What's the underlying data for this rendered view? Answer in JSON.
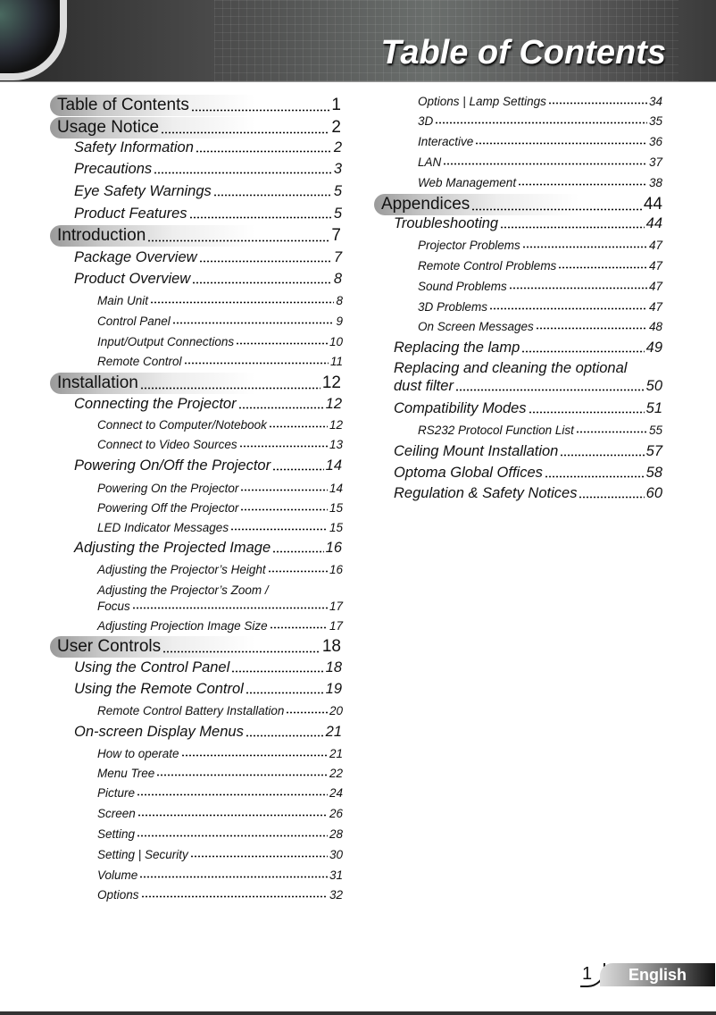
{
  "header": {
    "title": "Table of Contents"
  },
  "footer": {
    "page": "1",
    "language": "English"
  },
  "toc": {
    "left": [
      {
        "level": 1,
        "label": "Table of Contents",
        "page": "1"
      },
      {
        "level": 1,
        "label": "Usage Notice",
        "page": "2"
      },
      {
        "level": 2,
        "label": "Safety Information",
        "page": "2"
      },
      {
        "level": 2,
        "label": "Precautions",
        "page": "3"
      },
      {
        "level": 2,
        "label": "Eye Safety Warnings",
        "page": "5"
      },
      {
        "level": 2,
        "label": "Product Features",
        "page": "5"
      },
      {
        "level": 1,
        "label": "Introduction",
        "page": "7"
      },
      {
        "level": 2,
        "label": "Package Overview",
        "page": "7"
      },
      {
        "level": 2,
        "label": "Product Overview",
        "page": "8"
      },
      {
        "level": 3,
        "label": "Main Unit",
        "page": "8"
      },
      {
        "level": 3,
        "label": "Control Panel",
        "page": "9"
      },
      {
        "level": 3,
        "label": "Input/Output Connections",
        "page": "10"
      },
      {
        "level": 3,
        "label": "Remote Control",
        "page": "11"
      },
      {
        "level": 1,
        "label": "Installation",
        "page": "12"
      },
      {
        "level": 2,
        "label": "Connecting the Projector",
        "page": "12"
      },
      {
        "level": 3,
        "label": "Connect to Computer/Notebook",
        "page": "12"
      },
      {
        "level": 3,
        "label": "Connect to Video Sources",
        "page": "13"
      },
      {
        "level": 2,
        "label": "Powering On/Off the Projector",
        "page": "14"
      },
      {
        "level": 3,
        "label": "Powering On the Projector",
        "page": "14"
      },
      {
        "level": 3,
        "label": "Powering Off the Projector",
        "page": "15"
      },
      {
        "level": 3,
        "label": "LED Indicator Messages",
        "page": "15"
      },
      {
        "level": 2,
        "label": "Adjusting the Projected Image",
        "page": "16"
      },
      {
        "level": 3,
        "label": "Adjusting the Projector’s Height",
        "page": "16"
      },
      {
        "level": 3,
        "line1": "Adjusting the Projector’s Zoom /",
        "label": "Focus",
        "page": "17"
      },
      {
        "level": 3,
        "label": "Adjusting Projection Image Size",
        "page": "17"
      },
      {
        "level": 1,
        "label": "User Controls",
        "page": "18"
      },
      {
        "level": 2,
        "label": "Using the Control Panel",
        "page": "18"
      },
      {
        "level": 2,
        "label": "Using the Remote Control",
        "page": "19"
      },
      {
        "level": 3,
        "label": "Remote Control Battery Installation",
        "page": "20"
      },
      {
        "level": 2,
        "label": "On-screen Display Menus",
        "page": "21"
      },
      {
        "level": 3,
        "label": "How to operate ",
        "page": "21"
      },
      {
        "level": 3,
        "label": "Menu Tree",
        "page": "22"
      },
      {
        "level": 3,
        "label": "Picture",
        "page": "24"
      },
      {
        "level": 3,
        "label": "Screen",
        "page": "26"
      },
      {
        "level": 3,
        "label": "Setting",
        "page": "28"
      },
      {
        "level": 3,
        "label": "Setting | Security",
        "page": "30"
      },
      {
        "level": 3,
        "label": "Volume",
        "page": "31"
      },
      {
        "level": 3,
        "label": "Options",
        "page": "32"
      }
    ],
    "right": [
      {
        "level": 3,
        "label": "Options | Lamp Settings",
        "page": "34"
      },
      {
        "level": 3,
        "label": "3D",
        "page": "35"
      },
      {
        "level": 3,
        "label": "Interactive",
        "page": "36"
      },
      {
        "level": 3,
        "label": "LAN",
        "page": "37"
      },
      {
        "level": 3,
        "label": "Web Management",
        "page": "38"
      },
      {
        "level": 1,
        "label": "Appendices",
        "page": "44"
      },
      {
        "level": 2,
        "label": "Troubleshooting",
        "page": "44"
      },
      {
        "level": 3,
        "label": "Projector Problems",
        "page": "47"
      },
      {
        "level": 3,
        "label": "Remote Control Problems",
        "page": "47"
      },
      {
        "level": 3,
        "label": "Sound Problems",
        "page": "47"
      },
      {
        "level": 3,
        "label": "3D Problems",
        "page": "47"
      },
      {
        "level": 3,
        "label": "On Screen Messages",
        "page": "48"
      },
      {
        "level": 2,
        "label": "Replacing the lamp",
        "page": "49"
      },
      {
        "level": 2,
        "line1": "Replacing and cleaning the optional",
        "label": "dust filter",
        "page": "50"
      },
      {
        "level": 2,
        "label": "Compatibility Modes",
        "page": "51"
      },
      {
        "level": 3,
        "label": "RS232 Protocol Function List",
        "page": "55"
      },
      {
        "level": 2,
        "label": "Ceiling Mount Installation",
        "page": "57"
      },
      {
        "level": 2,
        "label": "Optoma Global Offices",
        "page": "58"
      },
      {
        "level": 2,
        "label": "Regulation & Safety Notices",
        "page": "60"
      }
    ]
  }
}
